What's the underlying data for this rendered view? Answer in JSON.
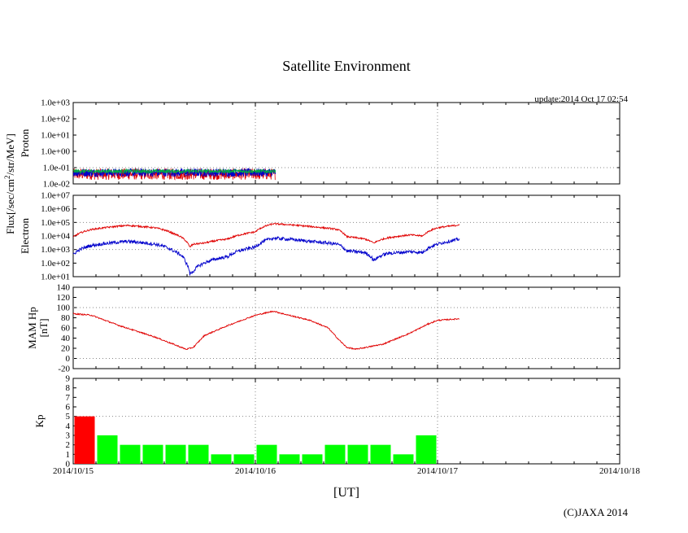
{
  "title": "Satellite Environment",
  "update": "update:2014 Oct 17 02:54",
  "copyright": "(C)JAXA 2014",
  "xlabel": "[UT]",
  "colors": {
    "red": "#e00000",
    "blue": "#0000cc",
    "green": "#00aa44",
    "kp_high": "#ff0000",
    "kp_normal": "#00ff00",
    "grid": "#888888"
  },
  "x_axis": {
    "ticks": [
      "2014/10/15",
      "2014/10/16",
      "2014/10/17",
      "2014/10/18"
    ],
    "range_days": [
      0,
      3
    ]
  },
  "flux_ylabel": "Flux[/sec/cm",
  "flux_ylabel_sup": "2",
  "flux_ylabel_rest": "/str/MeV]",
  "chart_data": [
    {
      "type": "line",
      "name": "proton",
      "ylabel": "Proton",
      "yscale": "log",
      "ylim": [
        0.01,
        1000
      ],
      "yticks": [
        "1.0e-02",
        "1.0e-01",
        "1.0e+00",
        "1.0e+01",
        "1.0e+02",
        "1.0e+03"
      ],
      "data_end_day": 1.11,
      "series": [
        {
          "color": "red",
          "typical": 0.04,
          "spread_decades": 0.35
        },
        {
          "color": "blue",
          "typical": 0.05,
          "spread_decades": 0.25
        },
        {
          "color": "green",
          "typical": 0.06,
          "spread_decades": 0.12
        }
      ]
    },
    {
      "type": "line",
      "name": "electron",
      "ylabel": "Electron",
      "yscale": "log",
      "ylim": [
        10,
        10000000
      ],
      "yticks": [
        "1.0e+01",
        "1.0e+02",
        "1.0e+03",
        "1.0e+04",
        "1.0e+05",
        "1.0e+06",
        "1.0e+07"
      ],
      "series": [
        {
          "color": "red",
          "x": [
            0,
            0.1,
            0.3,
            0.45,
            0.55,
            0.62,
            0.64,
            0.66,
            0.72,
            0.85,
            1.0,
            1.1,
            1.3,
            1.45,
            1.5,
            1.6,
            1.65,
            1.72,
            1.85,
            1.92,
            2.0,
            2.1,
            2.12
          ],
          "y": [
            8000,
            30000,
            60000,
            40000,
            15000,
            4000,
            1500,
            2500,
            3000,
            6000,
            20000,
            80000,
            50000,
            30000,
            9000,
            6000,
            3000,
            7000,
            12000,
            10000,
            40000,
            60000,
            70000
          ]
        },
        {
          "color": "blue",
          "x": [
            0,
            0.1,
            0.3,
            0.45,
            0.55,
            0.62,
            0.64,
            0.66,
            0.72,
            0.85,
            1.0,
            1.1,
            1.3,
            1.45,
            1.5,
            1.6,
            1.65,
            1.72,
            1.85,
            1.92,
            2.0,
            2.1,
            2.12
          ],
          "y": [
            400,
            2000,
            4000,
            2500,
            800,
            100,
            15,
            25,
            100,
            300,
            1500,
            7000,
            4000,
            2500,
            800,
            600,
            150,
            500,
            700,
            600,
            2500,
            5000,
            6000
          ]
        }
      ]
    },
    {
      "type": "line",
      "name": "mam_hp",
      "ylabel": "MAM Hp",
      "ylabel2": "[nT]",
      "ylim": [
        -20,
        140
      ],
      "yticks": [
        "-20",
        "0",
        "20",
        "40",
        "60",
        "80",
        "100",
        "120",
        "140"
      ],
      "series": [
        {
          "color": "red",
          "x": [
            0,
            0.1,
            0.25,
            0.45,
            0.55,
            0.62,
            0.66,
            0.72,
            0.85,
            1.0,
            1.1,
            1.15,
            1.3,
            1.4,
            1.45,
            1.5,
            1.55,
            1.7,
            1.85,
            1.95,
            2.0,
            2.12
          ],
          "y": [
            88,
            85,
            65,
            42,
            28,
            18,
            22,
            45,
            65,
            85,
            93,
            88,
            75,
            60,
            40,
            22,
            18,
            28,
            50,
            68,
            75,
            78
          ]
        }
      ]
    },
    {
      "type": "bar",
      "name": "kp",
      "ylabel": "Kp",
      "ylim": [
        0,
        9
      ],
      "yticks": [
        "0",
        "1",
        "2",
        "3",
        "4",
        "5",
        "6",
        "7",
        "8",
        "9"
      ],
      "bin_days": 0.125,
      "values": [
        5,
        3,
        2,
        2,
        2,
        2,
        1,
        1,
        2,
        1,
        1,
        2,
        2,
        2,
        1,
        3
      ],
      "threshold": 5
    }
  ]
}
